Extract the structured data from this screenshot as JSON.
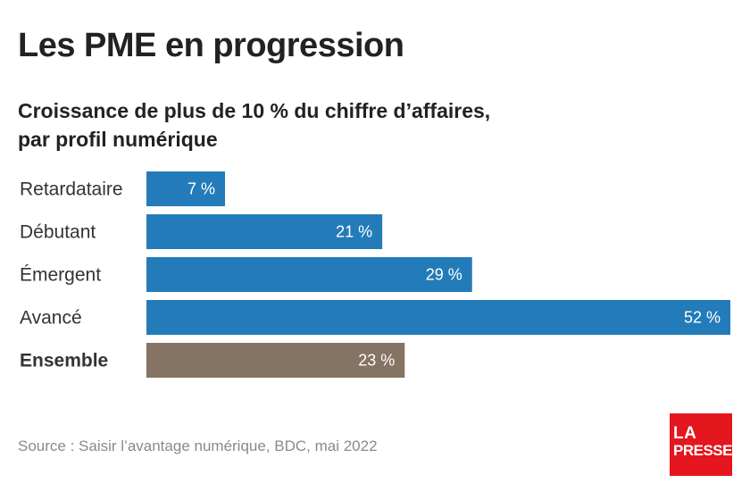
{
  "title": "Les PME en progression",
  "subtitle_line1": "Croissance de plus de 10 % du chiffre d’affaires,",
  "subtitle_line2": "par profil numérique",
  "source": "Source : Saisir l’avantage numérique, BDC, mai 2022",
  "logo": {
    "line1": "LA",
    "line2": "PRESSE"
  },
  "colors": {
    "primary_bar": "#237cb9",
    "total_bar": "#857363"
  },
  "chart_data": {
    "type": "bar",
    "orientation": "horizontal",
    "categories": [
      "Retardataire",
      "Débutant",
      "Émergent",
      "Avancé",
      "Ensemble"
    ],
    "values": [
      7,
      21,
      29,
      52,
      23
    ],
    "value_labels": [
      "7 %",
      "21 %",
      "29 %",
      "52 %",
      "23 %"
    ],
    "highlight": [
      "",
      "",
      "",
      "",
      "Ensemble"
    ],
    "xlim": [
      0,
      52
    ],
    "grid": false,
    "legend": false
  }
}
